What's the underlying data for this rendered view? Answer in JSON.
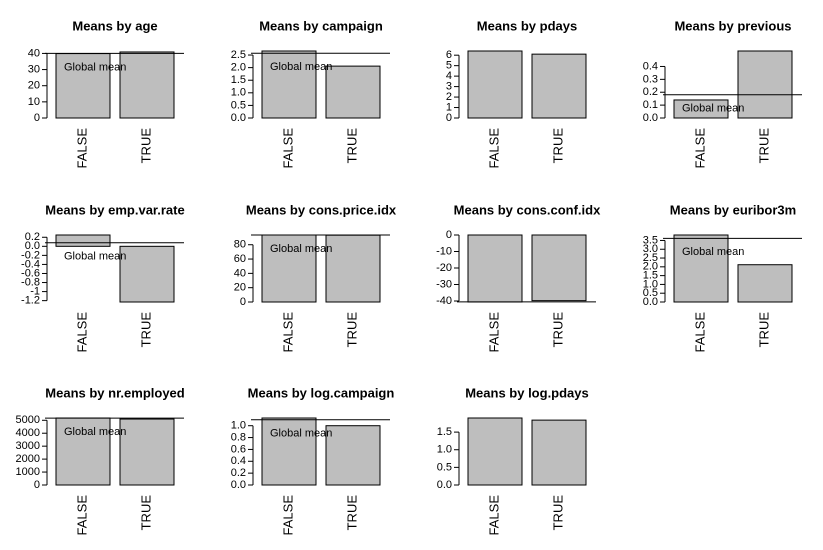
{
  "chart_data": [
    {
      "type": "bar",
      "title": "Means by age",
      "categories": [
        "FALSE",
        "TRUE"
      ],
      "values": [
        39.9,
        40.9
      ],
      "ylim": [
        0,
        41.5
      ],
      "yticks": [
        0,
        10,
        20,
        30,
        40
      ],
      "global_mean": 40.0,
      "annotation": "Global mean",
      "color": "#bebebe"
    },
    {
      "type": "bar",
      "title": "Means by campaign",
      "categories": [
        "FALSE",
        "TRUE"
      ],
      "values": [
        2.66,
        2.06
      ],
      "ylim": [
        0,
        2.66
      ],
      "yticks": [
        {
          "value": 0,
          "label": "0.0"
        },
        0.5,
        {
          "value": 1,
          "label": "1.0"
        },
        1.5,
        {
          "value": 2,
          "label": "2.0"
        },
        2.5
      ],
      "global_mean": 2.57,
      "annotation": "Global mean",
      "color": "#bebebe"
    },
    {
      "type": "bar",
      "title": "Means by pdays",
      "categories": [
        "FALSE",
        "TRUE"
      ],
      "values": [
        6.4,
        6.1
      ],
      "ylim": [
        0,
        6.4
      ],
      "yticks": [
        0,
        1,
        2,
        3,
        4,
        5,
        6
      ],
      "color": "#bebebe"
    },
    {
      "type": "bar",
      "title": "Means by previous",
      "categories": [
        "FALSE",
        "TRUE"
      ],
      "values": [
        0.14,
        0.52
      ],
      "ylim": [
        0,
        0.52
      ],
      "yticks": [
        {
          "value": 0,
          "label": "0.0"
        },
        0.1,
        0.2,
        0.3,
        0.4
      ],
      "global_mean": 0.18,
      "annotation": "Global mean",
      "color": "#bebebe"
    },
    {
      "type": "bar",
      "title": "Means by emp.var.rate",
      "categories": [
        "FALSE",
        "TRUE"
      ],
      "values": [
        0.25,
        -1.23
      ],
      "ylim": [
        -1.23,
        0.25
      ],
      "yticks": [
        -1.2,
        -1.0,
        -0.8,
        -0.6,
        -0.4,
        -0.2,
        {
          "value": 0,
          "label": "0.0"
        },
        0.2
      ],
      "global_mean": 0.08,
      "annotation": "Global mean",
      "color": "#bebebe"
    },
    {
      "type": "bar",
      "title": "Means by cons.price.idx",
      "categories": [
        "FALSE",
        "TRUE"
      ],
      "values": [
        93.6,
        93.35
      ],
      "ylim": [
        0,
        93.6
      ],
      "yticks": [
        0,
        20,
        40,
        60,
        80
      ],
      "global_mean": 93.58,
      "annotation": "Global mean",
      "color": "#bebebe"
    },
    {
      "type": "bar",
      "title": "Means by cons.conf.idx",
      "categories": [
        "FALSE",
        "TRUE"
      ],
      "values": [
        -40.6,
        -39.8
      ],
      "ylim": [
        -40.6,
        0
      ],
      "yticks": [
        -40,
        -30,
        -20,
        -10,
        0
      ],
      "global_mean": -40.5,
      "color": "#bebebe"
    },
    {
      "type": "bar",
      "title": "Means by euribor3m",
      "categories": [
        "FALSE",
        "TRUE"
      ],
      "values": [
        3.81,
        2.12
      ],
      "ylim": [
        0,
        3.81
      ],
      "yticks": [
        {
          "value": 0,
          "label": "0.0"
        },
        0.5,
        {
          "value": 1,
          "label": "1.0"
        },
        1.5,
        {
          "value": 2,
          "label": "2.0"
        },
        2.5,
        {
          "value": 3,
          "label": "3.0"
        },
        3.5
      ],
      "global_mean": 3.62,
      "annotation": "Global mean",
      "color": "#bebebe"
    },
    {
      "type": "bar",
      "title": "Means by nr.employed",
      "categories": [
        "FALSE",
        "TRUE"
      ],
      "values": [
        5176,
        5095
      ],
      "ylim": [
        0,
        5176
      ],
      "yticks": [
        0,
        1000,
        2000,
        3000,
        4000,
        5000
      ],
      "global_mean": 5167,
      "annotation": "Global mean",
      "color": "#bebebe"
    },
    {
      "type": "bar",
      "title": "Means by log.campaign",
      "categories": [
        "FALSE",
        "TRUE"
      ],
      "values": [
        1.13,
        1.0
      ],
      "ylim": [
        0,
        1.13
      ],
      "yticks": [
        {
          "value": 0,
          "label": "0.0"
        },
        0.2,
        0.4,
        0.6,
        0.8,
        {
          "value": 1,
          "label": "1.0"
        }
      ],
      "global_mean": 1.1,
      "annotation": "Global mean",
      "color": "#bebebe"
    },
    {
      "type": "bar",
      "title": "Means by log.pdays",
      "categories": [
        "FALSE",
        "TRUE"
      ],
      "values": [
        1.9,
        1.84
      ],
      "ylim": [
        0,
        1.9
      ],
      "yticks": [
        {
          "value": 0,
          "label": "0.0"
        },
        0.5,
        {
          "value": 1,
          "label": "1.0"
        },
        1.5
      ],
      "color": "#bebebe"
    }
  ]
}
